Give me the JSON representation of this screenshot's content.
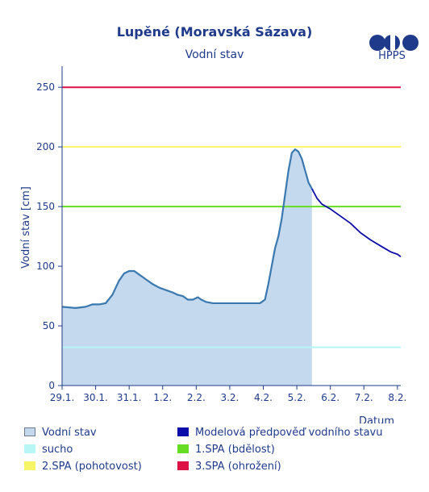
{
  "header": {
    "title": "Lupěné (Moravská Sázava)",
    "subtitle": "Vodní stav",
    "logo_text": "HPPS"
  },
  "chart_data": {
    "type": "area",
    "title": "Lupěné (Moravská Sázava)",
    "subtitle": "Vodní stav",
    "ylabel": "Vodní stav [cm]",
    "xlabel": "Datum",
    "ylim": [
      0,
      265
    ],
    "yticks": [
      0,
      50,
      100,
      150,
      200,
      250
    ],
    "xlim": [
      0,
      10.1
    ],
    "x_ticks": [
      {
        "x": 0,
        "label": "29.1."
      },
      {
        "x": 1,
        "label": "30.1."
      },
      {
        "x": 2,
        "label": "31.1."
      },
      {
        "x": 3,
        "label": "1.2."
      },
      {
        "x": 4,
        "label": "2.2."
      },
      {
        "x": 5,
        "label": "3.2."
      },
      {
        "x": 6,
        "label": "4.2."
      },
      {
        "x": 7,
        "label": "5.2."
      },
      {
        "x": 8,
        "label": "6.2."
      },
      {
        "x": 9,
        "label": "7.2."
      },
      {
        "x": 10,
        "label": "8.2."
      }
    ],
    "grid": false,
    "series": [
      {
        "name": "Vodní stav",
        "kind": "area",
        "color": "#3a78b0",
        "fill": "#c5d9ee",
        "points": [
          [
            0,
            66
          ],
          [
            0.4,
            65
          ],
          [
            0.7,
            66
          ],
          [
            0.9,
            68
          ],
          [
            1.1,
            68
          ],
          [
            1.3,
            69
          ],
          [
            1.5,
            76
          ],
          [
            1.6,
            82
          ],
          [
            1.7,
            88
          ],
          [
            1.85,
            94
          ],
          [
            2.0,
            96
          ],
          [
            2.15,
            96
          ],
          [
            2.3,
            93
          ],
          [
            2.5,
            89
          ],
          [
            2.7,
            85
          ],
          [
            2.9,
            82
          ],
          [
            3.1,
            80
          ],
          [
            3.3,
            78
          ],
          [
            3.45,
            76
          ],
          [
            3.6,
            75
          ],
          [
            3.75,
            72
          ],
          [
            3.9,
            72
          ],
          [
            4.05,
            74
          ],
          [
            4.15,
            72
          ],
          [
            4.3,
            70
          ],
          [
            4.5,
            69
          ],
          [
            4.8,
            69
          ],
          [
            5.2,
            69
          ],
          [
            5.6,
            69
          ],
          [
            5.9,
            69
          ],
          [
            6.05,
            72
          ],
          [
            6.15,
            85
          ],
          [
            6.25,
            100
          ],
          [
            6.35,
            115
          ],
          [
            6.45,
            125
          ],
          [
            6.55,
            140
          ],
          [
            6.65,
            160
          ],
          [
            6.75,
            180
          ],
          [
            6.85,
            195
          ],
          [
            6.95,
            198
          ],
          [
            7.05,
            196
          ],
          [
            7.15,
            190
          ],
          [
            7.25,
            180
          ],
          [
            7.35,
            170
          ],
          [
            7.45,
            165
          ]
        ]
      },
      {
        "name": "Modelová předpověď vodního stavu",
        "kind": "line",
        "color": "#0d0dab",
        "points": [
          [
            7.45,
            165
          ],
          [
            7.6,
            157
          ],
          [
            7.75,
            152
          ],
          [
            8.0,
            148
          ],
          [
            8.3,
            142
          ],
          [
            8.6,
            136
          ],
          [
            8.9,
            128
          ],
          [
            9.2,
            122
          ],
          [
            9.5,
            117
          ],
          [
            9.8,
            112
          ],
          [
            10.0,
            110
          ],
          [
            10.1,
            108
          ]
        ]
      },
      {
        "name": "sucho",
        "kind": "hline",
        "color": "#b8f5f5",
        "y": 32
      },
      {
        "name": "1.SPA (bdělost)",
        "kind": "hline",
        "color": "#66dd22",
        "y": 150
      },
      {
        "name": "2.SPA (pohotovost)",
        "kind": "hline",
        "color": "#f5f566",
        "y": 200
      },
      {
        "name": "3.SPA (ohrožení)",
        "kind": "hline",
        "color": "#dd1144",
        "y": 250
      }
    ],
    "now_x": 7.45
  },
  "legend": {
    "items": [
      {
        "label": "Vodní stav",
        "color": "#c5d9ee",
        "border": "#6b7b8c"
      },
      {
        "label": "Modelová předpověď vodního stavu",
        "color": "#0d0dab",
        "border": "#0d0dab"
      },
      {
        "label": "sucho",
        "color": "#b8f5f5",
        "border": "#b8f5f5"
      },
      {
        "label": "1.SPA (bdělost)",
        "color": "#66dd22",
        "border": "#66dd22"
      },
      {
        "label": "2.SPA (pohotovost)",
        "color": "#f5f566",
        "border": "#f5f566"
      },
      {
        "label": "3.SPA (ohrožení)",
        "color": "#dd1144",
        "border": "#dd1144"
      }
    ]
  }
}
